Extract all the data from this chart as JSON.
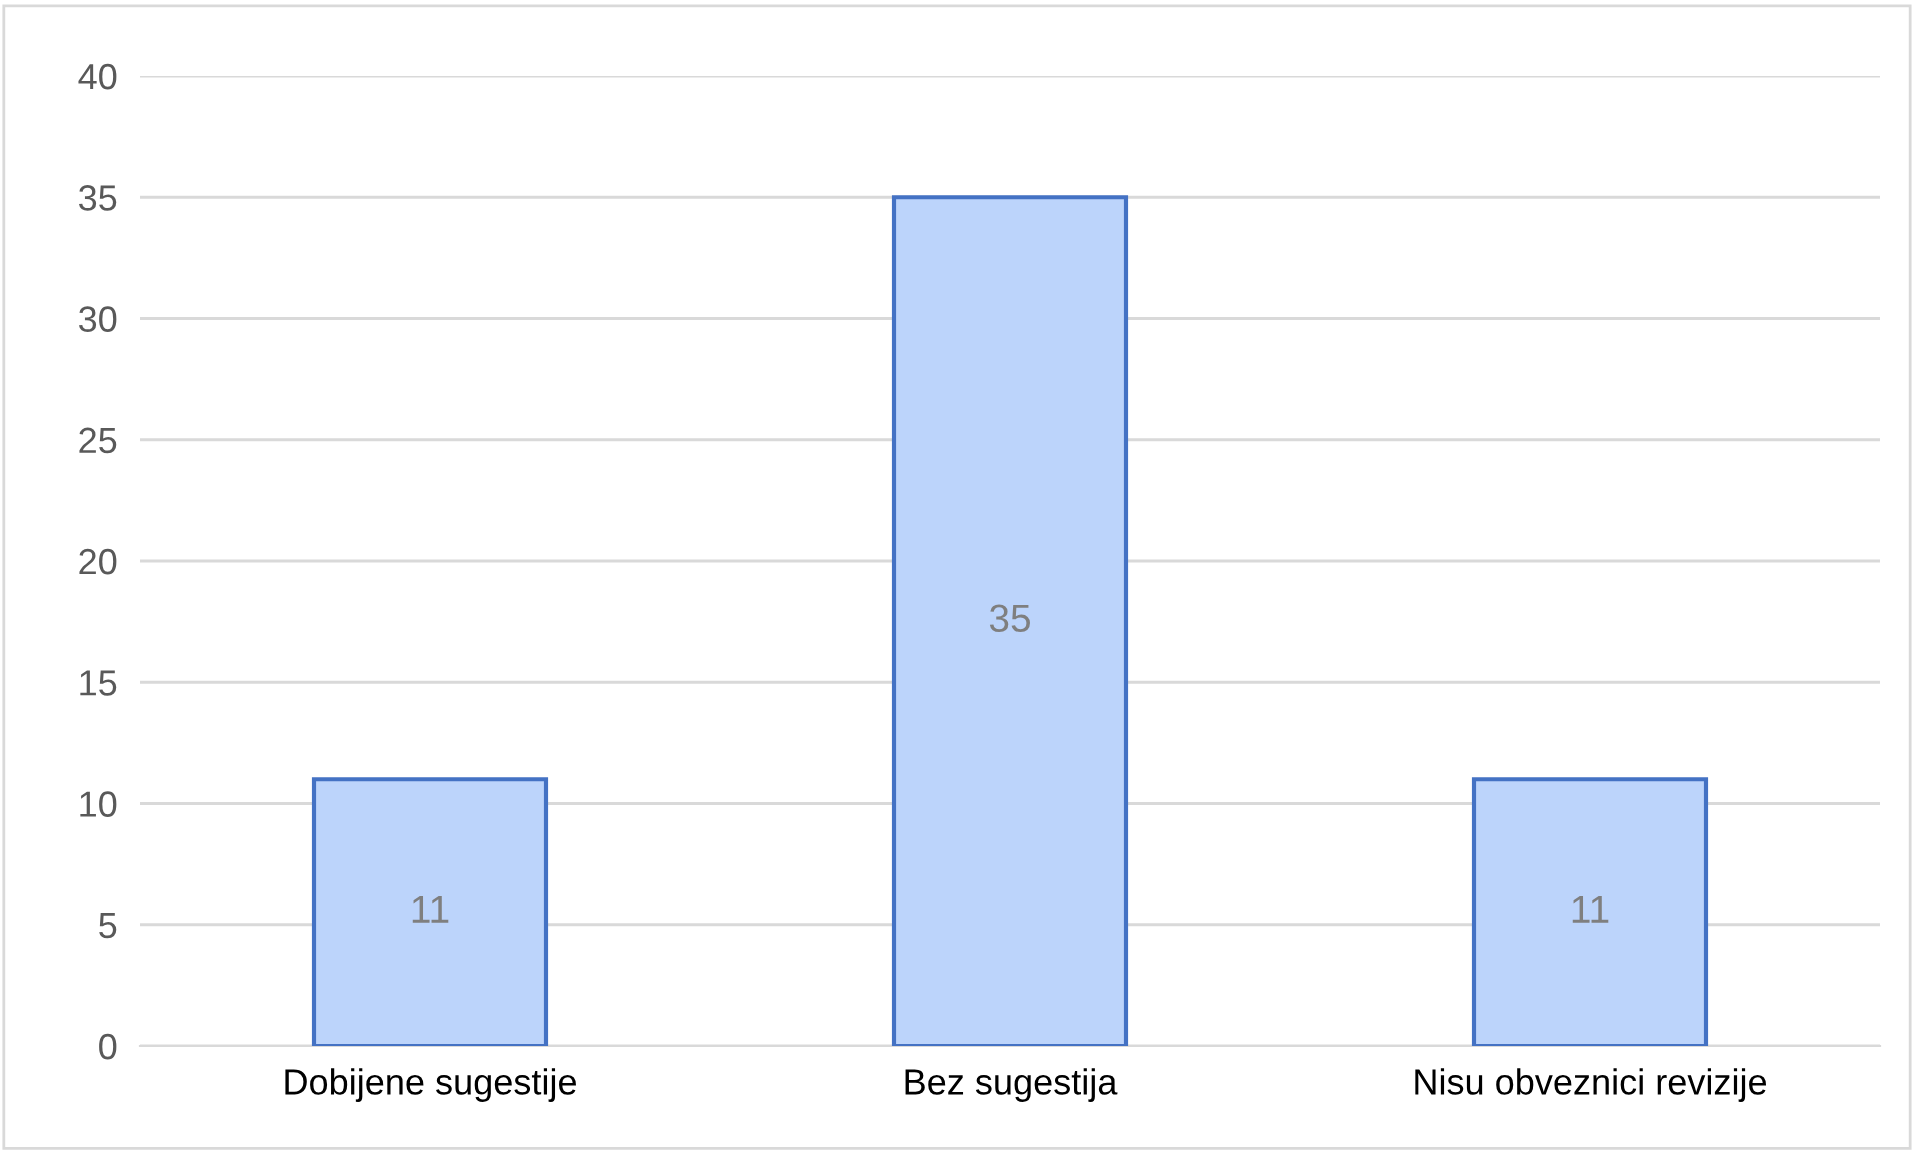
{
  "chart_data": {
    "type": "bar",
    "categories": [
      "Dobijene sugestije",
      "Bez sugestija",
      "Nisu obveznici revizije"
    ],
    "values": [
      11,
      35,
      11
    ],
    "color": "#bcd4fb",
    "ylim": [
      0,
      40
    ],
    "yticks": [
      0,
      5,
      10,
      15,
      20,
      25,
      30,
      35,
      40
    ],
    "grid": "y",
    "data_labels": true
  }
}
